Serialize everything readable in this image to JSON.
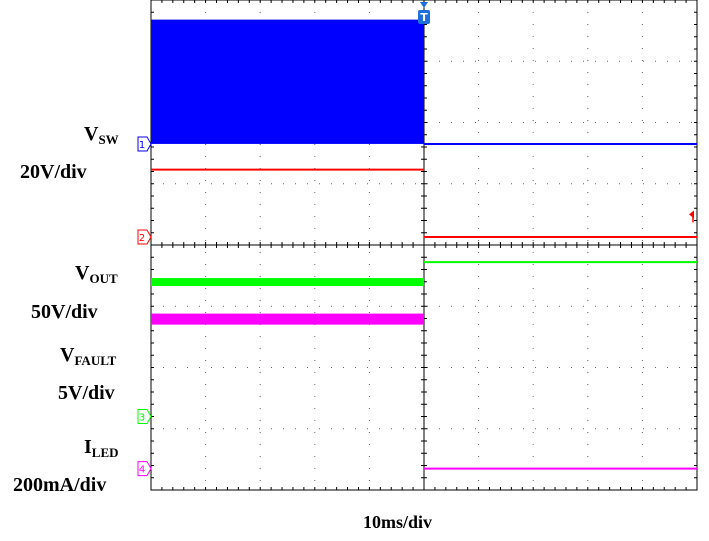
{
  "chart_data": {
    "type": "line",
    "title": "",
    "time_scale": "10ms/div",
    "xlim_div": [
      0,
      10
    ],
    "ylim_div": [
      0,
      8
    ],
    "divisions": {
      "horizontal": 10,
      "vertical": 8
    },
    "grid": true,
    "trigger_marker": "T",
    "trigger_time_div": 5.0,
    "channel_labels": [
      {
        "symbol": "V",
        "subscript": "SW",
        "scale": "20V/div"
      },
      {
        "symbol": "V",
        "subscript": "OUT",
        "scale": "50V/div"
      },
      {
        "symbol": "V",
        "subscript": "FAULT",
        "scale": "5V/div"
      },
      {
        "symbol": "I",
        "subscript": "LED",
        "scale": "200mA/div"
      }
    ],
    "channel_markers": [
      "1",
      "2",
      "3",
      "4"
    ],
    "series": [
      {
        "channel": "1",
        "color": "#0000ff",
        "segments": [
          {
            "t": [
              0,
              5.0
            ],
            "low": 5.65,
            "high": 7.68,
            "filled": true
          },
          {
            "t": [
              5.0,
              10
            ],
            "low": 5.65,
            "high": 5.65,
            "filled": false
          }
        ]
      },
      {
        "channel": "2",
        "color": "#ff0000",
        "segments": [
          {
            "t": [
              0,
              5.0
            ],
            "low": 5.23,
            "high": 5.23,
            "filled": false
          },
          {
            "t": [
              5.0,
              10
            ],
            "low": 4.13,
            "high": 4.13,
            "filled": false
          }
        ]
      },
      {
        "channel": "3",
        "color": "#00ff00",
        "segments": [
          {
            "t": [
              0,
              5.0
            ],
            "low": 3.33,
            "high": 3.46,
            "filled": true
          },
          {
            "t": [
              5.0,
              10
            ],
            "low": 3.72,
            "high": 3.72,
            "filled": false
          }
        ]
      },
      {
        "channel": "4",
        "color": "#ff00ff",
        "segments": [
          {
            "t": [
              0,
              5.0
            ],
            "low": 2.7,
            "high": 2.88,
            "filled": true
          },
          {
            "t": [
              5.0,
              10
            ],
            "low": 0.35,
            "high": 0.35,
            "filled": false
          }
        ]
      }
    ]
  }
}
